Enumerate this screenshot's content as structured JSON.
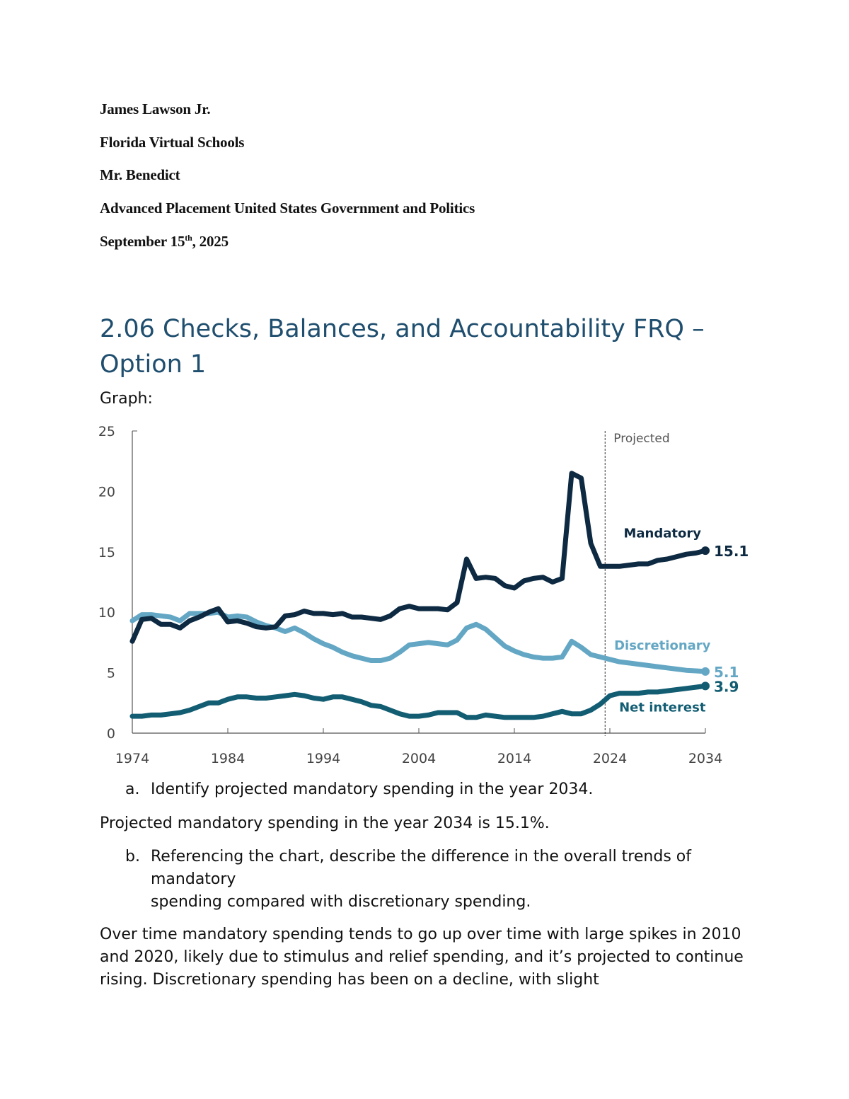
{
  "header": {
    "name": "James Lawson Jr.",
    "school": "Florida Virtual Schools",
    "teacher": "Mr. Benedict",
    "course": "Advanced Placement United States Government and Politics",
    "date_prefix": "September 15",
    "date_sup": "th",
    "date_suffix": ", 2025"
  },
  "title": "2.06 Checks, Balances, and Accountability FRQ – Option 1",
  "graph_label": "Graph:",
  "questions": [
    {
      "marker": "a.",
      "text": "Identify projected mandatory spending in the year 2034."
    },
    {
      "marker": "b.",
      "text_line1": "Referencing the chart, describe the difference in the overall trends of mandatory",
      "text_line2": "spending compared with discretionary spending."
    }
  ],
  "answers": [
    "Projected mandatory spending in the year 2034 is 15.1%.",
    "Over time mandatory spending tends to go up over time with large spikes in 2010 and 2020, likely due to stimulus and relief spending, and it’s projected to continue rising. Discretionary spending has been on a decline, with slight"
  ],
  "chart_data": {
    "type": "line",
    "x": [
      1974,
      1975,
      1976,
      1977,
      1978,
      1979,
      1980,
      1981,
      1982,
      1983,
      1984,
      1985,
      1986,
      1987,
      1988,
      1989,
      1990,
      1991,
      1992,
      1993,
      1994,
      1995,
      1996,
      1997,
      1998,
      1999,
      2000,
      2001,
      2002,
      2003,
      2004,
      2005,
      2006,
      2007,
      2008,
      2009,
      2010,
      2011,
      2012,
      2013,
      2014,
      2015,
      2016,
      2017,
      2018,
      2019,
      2020,
      2021,
      2022,
      2023,
      2024,
      2025,
      2026,
      2027,
      2028,
      2029,
      2030,
      2031,
      2032,
      2033,
      2034
    ],
    "series": [
      {
        "name": "Mandatory",
        "color": "#0d2a42",
        "end_label": "15.1",
        "values": [
          7.6,
          9.4,
          9.5,
          9.0,
          9.0,
          8.7,
          9.3,
          9.6,
          10.0,
          10.3,
          9.2,
          9.3,
          9.1,
          8.8,
          8.7,
          8.8,
          9.7,
          9.8,
          10.1,
          9.9,
          9.9,
          9.8,
          9.9,
          9.6,
          9.6,
          9.5,
          9.4,
          9.7,
          10.3,
          10.5,
          10.3,
          10.3,
          10.3,
          10.2,
          10.8,
          14.4,
          12.8,
          12.9,
          12.8,
          12.2,
          12.0,
          12.6,
          12.8,
          12.9,
          12.5,
          12.8,
          21.5,
          21.1,
          15.7,
          13.8,
          13.8,
          13.8,
          13.9,
          14.0,
          14.0,
          14.3,
          14.4,
          14.6,
          14.8,
          14.9,
          15.1
        ]
      },
      {
        "name": "Discretionary",
        "color": "#64a7c4",
        "end_label": "5.1",
        "values": [
          9.3,
          9.8,
          9.8,
          9.7,
          9.6,
          9.3,
          9.9,
          9.9,
          9.9,
          10.0,
          9.6,
          9.7,
          9.6,
          9.2,
          8.9,
          8.7,
          8.4,
          8.7,
          8.3,
          7.8,
          7.4,
          7.1,
          6.7,
          6.4,
          6.2,
          6.0,
          6.0,
          6.2,
          6.7,
          7.3,
          7.4,
          7.5,
          7.4,
          7.3,
          7.7,
          8.7,
          9.0,
          8.6,
          7.9,
          7.2,
          6.8,
          6.5,
          6.3,
          6.2,
          6.2,
          6.3,
          7.6,
          7.1,
          6.5,
          6.3,
          6.1,
          5.9,
          5.8,
          5.7,
          5.6,
          5.5,
          5.4,
          5.3,
          5.2,
          5.15,
          5.1
        ]
      },
      {
        "name": "Net interest",
        "color": "#135d73",
        "end_label": "3.9",
        "values": [
          1.4,
          1.4,
          1.5,
          1.5,
          1.6,
          1.7,
          1.9,
          2.2,
          2.5,
          2.5,
          2.8,
          3.0,
          3.0,
          2.9,
          2.9,
          3.0,
          3.1,
          3.2,
          3.1,
          2.9,
          2.8,
          3.0,
          3.0,
          2.8,
          2.6,
          2.3,
          2.2,
          1.9,
          1.6,
          1.4,
          1.4,
          1.5,
          1.7,
          1.7,
          1.7,
          1.3,
          1.3,
          1.5,
          1.4,
          1.3,
          1.3,
          1.3,
          1.3,
          1.4,
          1.6,
          1.8,
          1.6,
          1.6,
          1.9,
          2.4,
          3.1,
          3.3,
          3.3,
          3.3,
          3.4,
          3.4,
          3.5,
          3.6,
          3.7,
          3.8,
          3.9
        ]
      }
    ],
    "xticks": [
      "1974",
      "1984",
      "1994",
      "2004",
      "2014",
      "2024",
      "2034"
    ],
    "yticks": [
      "0",
      "5",
      "10",
      "15",
      "20",
      "25"
    ],
    "xlim": [
      1974,
      2034
    ],
    "ylim": [
      0,
      25
    ],
    "projection_start": 2023.5,
    "projection_label": "Projected",
    "grid": false,
    "legend": "inline labels at right"
  }
}
